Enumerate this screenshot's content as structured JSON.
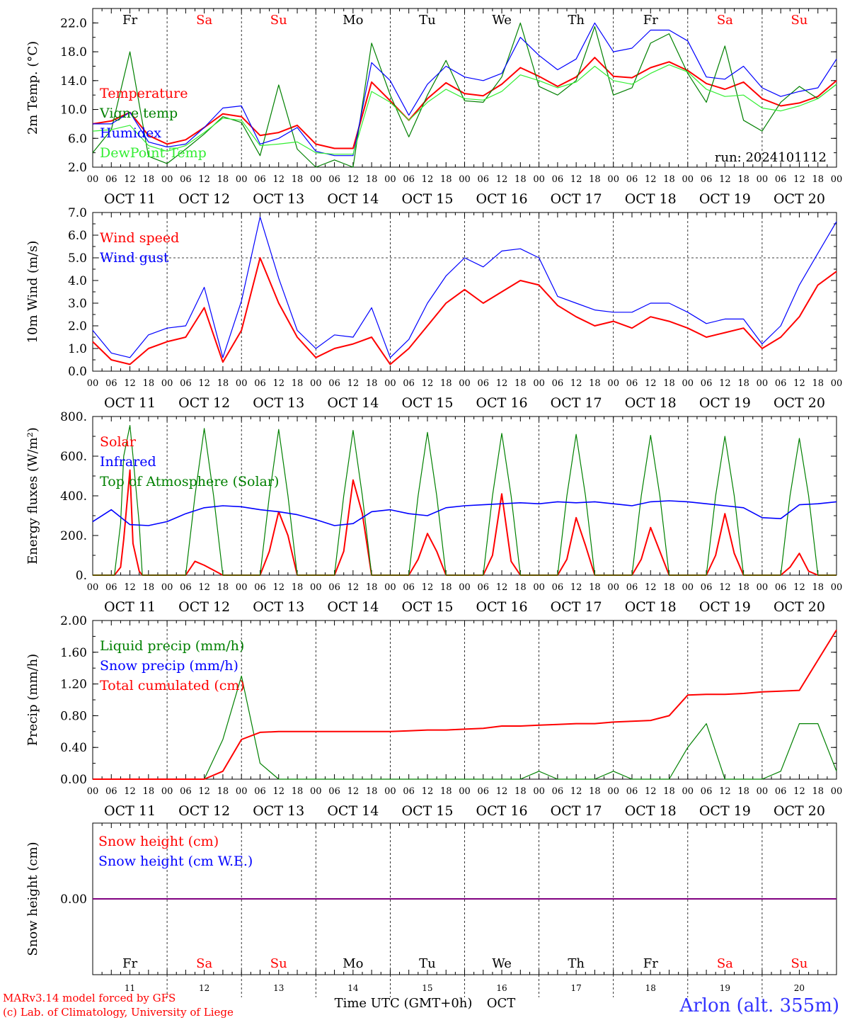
{
  "footer": {
    "credit_line1": "MARv3.14 model forced by GFS",
    "credit_line2": "(c) Lab. of Climatology, University of Liege",
    "xaxis_title": "Time UTC (GMT+0h)",
    "xaxis_month": "OCT",
    "station": "Arlon (alt. 355m)"
  },
  "run_label": "run: 2024101112",
  "days": [
    {
      "abbr": "Fr",
      "weekend": false,
      "date": "OCT 11",
      "num": "11"
    },
    {
      "abbr": "Sa",
      "weekend": true,
      "date": "OCT 12",
      "num": "12"
    },
    {
      "abbr": "Su",
      "weekend": true,
      "date": "OCT 13",
      "num": "13"
    },
    {
      "abbr": "Mo",
      "weekend": false,
      "date": "OCT 14",
      "num": "14"
    },
    {
      "abbr": "Tu",
      "weekend": false,
      "date": "OCT 15",
      "num": "15"
    },
    {
      "abbr": "We",
      "weekend": false,
      "date": "OCT 16",
      "num": "16"
    },
    {
      "abbr": "Th",
      "weekend": false,
      "date": "OCT 17",
      "num": "17"
    },
    {
      "abbr": "Fr",
      "weekend": false,
      "date": "OCT 18",
      "num": "18"
    },
    {
      "abbr": "Sa",
      "weekend": true,
      "date": "OCT 19",
      "num": "19"
    },
    {
      "abbr": "Su",
      "weekend": true,
      "date": "OCT 20",
      "num": "20"
    }
  ],
  "hour_labels": [
    "00",
    "06",
    "12",
    "18"
  ],
  "hour_label_end": "00",
  "colors": {
    "red": "#ff0000",
    "green": "#008000",
    "blue": "#0000ff",
    "lightgreen": "#33ee33",
    "purple": "#800080",
    "weekend": "#ff0000",
    "station": "#3333ff"
  },
  "chart_data": [
    {
      "type": "line",
      "ylabel": "2m Temp. (°C)",
      "ylim": [
        2.0,
        24.0
      ],
      "yticks": [
        "2.0",
        "6.0",
        "10.0",
        "14.0",
        "18.0",
        "22.0"
      ],
      "ytick_values": [
        2,
        6,
        10,
        14,
        18,
        22
      ],
      "show_days": true,
      "hlines": [],
      "x_hours": [
        0,
        6,
        12,
        18,
        24,
        30,
        36,
        42,
        48,
        54,
        60,
        66,
        72,
        78,
        84,
        90,
        96,
        102,
        108,
        114,
        120,
        126,
        132,
        138,
        144,
        150,
        156,
        162,
        168,
        174,
        180,
        186,
        192,
        198,
        204,
        210,
        216,
        222,
        228,
        234,
        240
      ],
      "series": [
        {
          "name": "Temperature",
          "color": "red",
          "values": [
            8.0,
            8.4,
            9.6,
            6.4,
            5.2,
            5.8,
            7.5,
            9.4,
            9.0,
            6.4,
            6.8,
            7.8,
            5.2,
            4.6,
            4.6,
            13.8,
            11.2,
            8.5,
            11.5,
            13.7,
            12.2,
            11.9,
            13.5,
            15.8,
            14.6,
            13.2,
            14.5,
            17.2,
            14.6,
            14.4,
            15.8,
            16.6,
            15.4,
            13.6,
            12.8,
            13.8,
            11.5,
            10.5,
            10.9,
            11.8,
            14.0
          ]
        },
        {
          "name": "Vigne temp",
          "color": "green",
          "values": [
            4.0,
            7.2,
            18.0,
            3.5,
            2.5,
            4.5,
            6.6,
            9.0,
            8.2,
            3.6,
            13.4,
            4.5,
            1.5,
            3.0,
            2.0,
            19.2,
            12.0,
            6.2,
            12.0,
            16.8,
            11.2,
            11.0,
            14.5,
            22.0,
            13.2,
            12.0,
            14.0,
            21.5,
            12.0,
            13.0,
            19.2,
            20.5,
            15.0,
            11.0,
            18.8,
            8.5,
            7.0,
            11.0,
            13.2,
            11.5,
            13.5
          ]
        },
        {
          "name": "Humidex",
          "color": "blue",
          "values": [
            8.0,
            8.0,
            9.6,
            5.5,
            4.8,
            5.2,
            7.5,
            10.2,
            10.5,
            5.2,
            6.0,
            7.5,
            4.2,
            3.6,
            3.6,
            16.5,
            14.0,
            9.2,
            13.5,
            16.0,
            14.5,
            14.0,
            15.0,
            20.0,
            17.5,
            15.5,
            17.0,
            22.0,
            18.0,
            18.5,
            21.0,
            21.0,
            19.5,
            14.5,
            14.2,
            16.0,
            13.0,
            11.8,
            12.5,
            13.0,
            17.0
          ]
        },
        {
          "name": "DewPoint Temp",
          "color": "lightgreen",
          "values": [
            7.0,
            7.2,
            7.8,
            5.0,
            4.2,
            5.0,
            6.8,
            8.8,
            8.5,
            5.0,
            5.2,
            5.5,
            4.0,
            3.8,
            3.8,
            12.5,
            11.0,
            8.5,
            11.0,
            12.8,
            11.5,
            11.3,
            12.5,
            14.8,
            14.0,
            13.0,
            13.8,
            16.0,
            14.0,
            13.5,
            15.0,
            16.2,
            15.2,
            12.8,
            11.8,
            12.0,
            10.2,
            9.8,
            10.5,
            11.5,
            13.5
          ]
        }
      ]
    },
    {
      "type": "line",
      "ylabel": "10m Wind (m/s)",
      "ylim": [
        0.0,
        7.0
      ],
      "yticks": [
        "0.0",
        "1.0",
        "2.0",
        "3.0",
        "4.0",
        "5.0",
        "6.0",
        "7.0"
      ],
      "ytick_values": [
        0,
        1,
        2,
        3,
        4,
        5,
        6,
        7
      ],
      "show_days": false,
      "hlines": [
        5.0
      ],
      "x_hours": [
        0,
        6,
        12,
        18,
        24,
        30,
        36,
        42,
        48,
        54,
        60,
        66,
        72,
        78,
        84,
        90,
        96,
        102,
        108,
        114,
        120,
        126,
        132,
        138,
        144,
        150,
        156,
        162,
        168,
        174,
        180,
        186,
        192,
        198,
        204,
        210,
        216,
        222,
        228,
        234,
        240
      ],
      "series": [
        {
          "name": "Wind speed",
          "color": "red",
          "values": [
            1.3,
            0.5,
            0.3,
            1.0,
            1.3,
            1.5,
            2.8,
            0.4,
            1.8,
            5.0,
            3.0,
            1.5,
            0.6,
            1.0,
            1.2,
            1.5,
            0.3,
            1.0,
            2.0,
            3.0,
            3.6,
            3.0,
            3.5,
            4.0,
            3.8,
            2.9,
            2.4,
            2.0,
            2.2,
            1.9,
            2.4,
            2.2,
            1.9,
            1.5,
            1.7,
            1.9,
            1.0,
            1.5,
            2.4,
            3.8,
            4.4
          ]
        },
        {
          "name": "Wind gust",
          "color": "blue",
          "values": [
            1.8,
            0.8,
            0.6,
            1.6,
            1.9,
            2.0,
            3.7,
            0.6,
            3.1,
            6.8,
            4.1,
            1.8,
            1.0,
            1.6,
            1.5,
            2.8,
            0.6,
            1.4,
            3.0,
            4.2,
            5.0,
            4.6,
            5.3,
            5.4,
            5.0,
            3.3,
            3.0,
            2.7,
            2.6,
            2.6,
            3.0,
            3.0,
            2.6,
            2.1,
            2.3,
            2.3,
            1.2,
            2.0,
            3.8,
            5.2,
            6.6
          ]
        }
      ]
    },
    {
      "type": "line",
      "ylabel": "Energy fluxes (W/m²)",
      "ylim": [
        0,
        800
      ],
      "yticks": [
        "0.",
        "200.",
        "400.",
        "600.",
        "800."
      ],
      "ytick_values": [
        0,
        200,
        400,
        600,
        800
      ],
      "show_days": false,
      "hlines": [],
      "x_hours": [
        0,
        6,
        7,
        9,
        10,
        12,
        13,
        15,
        16,
        18,
        24,
        30,
        33,
        36,
        39,
        42,
        48,
        54,
        57,
        60,
        63,
        66,
        72,
        78,
        81,
        84,
        87,
        90,
        96,
        102,
        105,
        108,
        111,
        114,
        120,
        126,
        129,
        132,
        135,
        138,
        144,
        150,
        153,
        156,
        159,
        162,
        168,
        174,
        177,
        180,
        183,
        186,
        192,
        198,
        201,
        204,
        207,
        210,
        216,
        222,
        225,
        228,
        231,
        234,
        240
      ],
      "series": [
        {
          "name": "Solar",
          "color": "red",
          "values": [
            0,
            0,
            0,
            40,
            180,
            530,
            160,
            20,
            0,
            0,
            0,
            0,
            70,
            50,
            25,
            0,
            0,
            0,
            120,
            320,
            200,
            0,
            0,
            0,
            120,
            480,
            310,
            0,
            0,
            0,
            80,
            210,
            120,
            0,
            0,
            0,
            100,
            410,
            70,
            0,
            0,
            0,
            80,
            290,
            150,
            0,
            0,
            0,
            80,
            240,
            120,
            0,
            0,
            0,
            100,
            310,
            110,
            0,
            0,
            0,
            40,
            110,
            20,
            0,
            0
          ]
        },
        {
          "name": "Top of Atmosphere (Solar)",
          "color": "green",
          "values": [
            0,
            0,
            0,
            260,
            600,
            755,
            600,
            260,
            0,
            0,
            0,
            0,
            400,
            740,
            400,
            0,
            0,
            0,
            400,
            735,
            400,
            0,
            0,
            0,
            400,
            730,
            400,
            0,
            0,
            0,
            400,
            720,
            400,
            0,
            0,
            0,
            400,
            715,
            400,
            0,
            0,
            0,
            400,
            710,
            400,
            0,
            0,
            0,
            400,
            705,
            400,
            0,
            0,
            0,
            400,
            700,
            400,
            0,
            0,
            0,
            400,
            690,
            400,
            0,
            0
          ]
        }
      ]
    },
    {
      "type": "line",
      "ylabel": "Precip (mm/h)",
      "ylim": [
        0.0,
        2.0
      ],
      "yticks": [
        "0.00",
        "0.40",
        "0.80",
        "1.20",
        "1.60",
        "2.00"
      ],
      "ytick_values": [
        0,
        0.4,
        0.8,
        1.2,
        1.6,
        2.0
      ],
      "show_days": false,
      "hlines": [],
      "x_hours": [
        0,
        6,
        12,
        18,
        24,
        30,
        36,
        42,
        48,
        54,
        60,
        66,
        72,
        78,
        84,
        90,
        96,
        102,
        108,
        114,
        120,
        126,
        132,
        138,
        144,
        150,
        156,
        162,
        168,
        174,
        180,
        186,
        192,
        198,
        204,
        210,
        216,
        222,
        228,
        234,
        240
      ],
      "series": [
        {
          "name": "Liquid precip (mm/h)",
          "color": "green",
          "values": [
            0,
            0,
            0,
            0,
            0,
            0,
            0,
            0.5,
            1.3,
            0.2,
            0,
            0,
            0,
            0,
            0,
            0,
            0,
            0,
            0,
            0,
            0,
            0,
            0,
            0,
            0.1,
            0,
            0,
            0,
            0.1,
            0,
            0,
            0,
            0.4,
            0.7,
            0,
            0,
            0,
            0.1,
            0.7,
            0.7,
            0.1
          ]
        },
        {
          "name": "Total cumulated (cm)",
          "color": "red",
          "values": [
            0,
            0,
            0,
            0,
            0,
            0,
            0,
            0.1,
            0.5,
            0.59,
            0.6,
            0.6,
            0.6,
            0.6,
            0.6,
            0.6,
            0.6,
            0.61,
            0.62,
            0.62,
            0.63,
            0.64,
            0.67,
            0.67,
            0.68,
            0.69,
            0.7,
            0.7,
            0.72,
            0.73,
            0.74,
            0.8,
            1.06,
            1.07,
            1.07,
            1.08,
            1.1,
            1.11,
            1.12,
            1.5,
            1.88
          ]
        }
      ]
    },
    {
      "type": "line",
      "ylabel": "Snow height (cm)",
      "ylim": [
        -0.01,
        0.01
      ],
      "yticks": [
        "0.00"
      ],
      "ytick_values": [
        0
      ],
      "show_days": true,
      "hlines": [],
      "x_hours": [
        0,
        240
      ],
      "series": [
        {
          "name": "Snow height (cm)",
          "color": "red",
          "values": [
            0,
            0
          ]
        },
        {
          "name": "Snow height (cm W.E.)",
          "color": "blue",
          "values": [
            0,
            0
          ]
        }
      ]
    }
  ],
  "legends": [
    [
      {
        "text": "Temperature",
        "color": "red"
      },
      {
        "text": "Vigne temp",
        "color": "green"
      },
      {
        "text": "Humidex",
        "color": "blue"
      },
      {
        "text": "DewPoint Temp",
        "color": "lightgreen"
      }
    ],
    [
      {
        "text": "Wind speed",
        "color": "red"
      },
      {
        "text": "Wind gust",
        "color": "blue"
      }
    ],
    [
      {
        "text": "Solar",
        "color": "red"
      },
      {
        "text": "Infrared",
        "color": "blue"
      },
      {
        "text": "Top of Atmosphere (Solar)",
        "color": "green"
      }
    ],
    [
      {
        "text": "Liquid precip (mm/h)",
        "color": "green"
      },
      {
        "text": "Snow precip (mm/h)",
        "color": "blue"
      },
      {
        "text": "Total cumulated (cm)",
        "color": "red"
      }
    ],
    [
      {
        "text": "Snow height (cm)",
        "color": "red"
      },
      {
        "text": "Snow height (cm W.E.)",
        "color": "blue"
      }
    ]
  ],
  "infrared_values": [
    270,
    330,
    255,
    250,
    270,
    310,
    340,
    350,
    345,
    330,
    320,
    305,
    280,
    250,
    260,
    320,
    330,
    310,
    300,
    340,
    350,
    355,
    360,
    365,
    360,
    370,
    365,
    370,
    360,
    350,
    370,
    375,
    370,
    360,
    350,
    340,
    290,
    285,
    355,
    360,
    370
  ],
  "infrared_hours": [
    0,
    6,
    12,
    18,
    24,
    30,
    36,
    42,
    48,
    54,
    60,
    66,
    72,
    78,
    84,
    90,
    96,
    102,
    108,
    114,
    120,
    126,
    132,
    138,
    144,
    150,
    156,
    162,
    168,
    174,
    180,
    186,
    192,
    198,
    204,
    210,
    216,
    222,
    228,
    234,
    240
  ]
}
